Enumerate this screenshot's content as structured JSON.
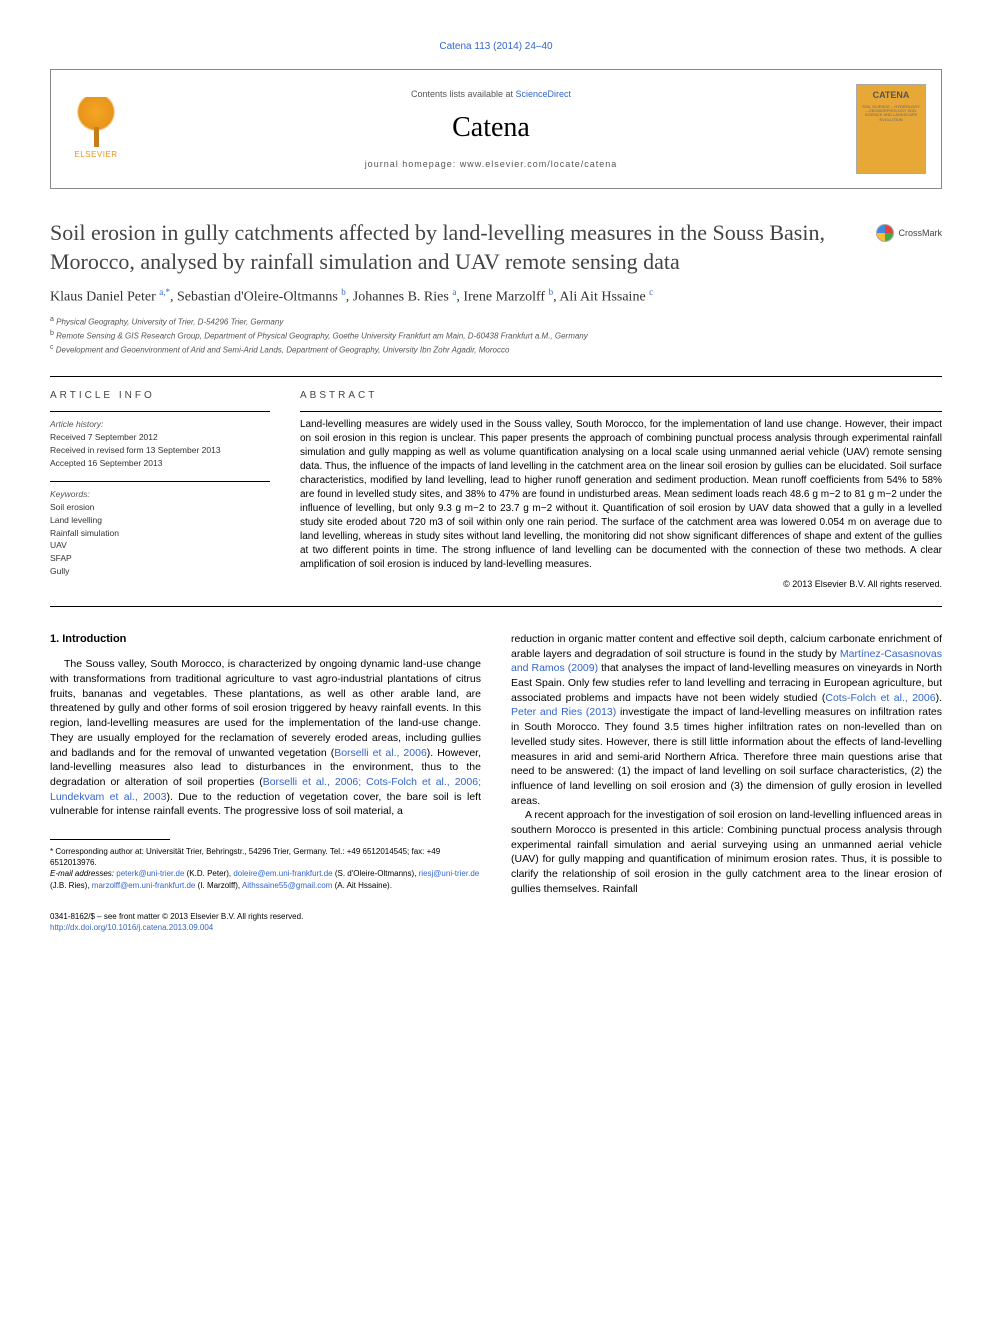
{
  "journal_ref": "Catena 113 (2014) 24–40",
  "header": {
    "contents_prefix": "Contents lists available at ",
    "sciencedirect": "ScienceDirect",
    "journal_name": "Catena",
    "homepage_prefix": "journal homepage: ",
    "homepage": "www.elsevier.com/locate/catena",
    "elsevier": "ELSEVIER",
    "cover_title": "CATENA",
    "cover_sub": "SOIL SCIENCE – HYDROLOGY – GEOMORPHOLOGY\nSOIL SCIENCE AND LANDSCAPE EVOLUTION"
  },
  "crossmark": "CrossMark",
  "title": "Soil erosion in gully catchments affected by land-levelling measures in the Souss Basin, Morocco, analysed by rainfall simulation and UAV remote sensing data",
  "authors_html": "Klaus Daniel Peter <sup>a,*</sup>, Sebastian d'Oleire-Oltmanns <sup>b</sup>, Johannes B. Ries <sup>a</sup>, Irene Marzolff <sup>b</sup>, Ali Ait Hssaine <sup>c</sup>",
  "affiliations": [
    {
      "sup": "a",
      "text": "Physical Geography, University of Trier, D-54296 Trier, Germany"
    },
    {
      "sup": "b",
      "text": "Remote Sensing & GIS Research Group, Department of Physical Geography, Goethe University Frankfurt am Main, D-60438 Frankfurt a.M., Germany"
    },
    {
      "sup": "c",
      "text": "Development and Geoenvironment of Arid and Semi-Arid Lands, Department of Geography, University Ibn Zohr Agadir, Morocco"
    }
  ],
  "article_info": {
    "heading": "ARTICLE INFO",
    "history_label": "Article history:",
    "received": "Received 7 September 2012",
    "revised": "Received in revised form 13 September 2013",
    "accepted": "Accepted 16 September 2013",
    "keywords_label": "Keywords:",
    "keywords": [
      "Soil erosion",
      "Land levelling",
      "Rainfall simulation",
      "UAV",
      "SFAP",
      "Gully"
    ]
  },
  "abstract": {
    "heading": "ABSTRACT",
    "text": "Land-levelling measures are widely used in the Souss valley, South Morocco, for the implementation of land use change. However, their impact on soil erosion in this region is unclear. This paper presents the approach of combining punctual process analysis through experimental rainfall simulation and gully mapping as well as volume quantification analysing on a local scale using unmanned aerial vehicle (UAV) remote sensing data. Thus, the influence of the impacts of land levelling in the catchment area on the linear soil erosion by gullies can be elucidated. Soil surface characteristics, modified by land levelling, lead to higher runoff generation and sediment production. Mean runoff coefficients from 54% to 58% are found in levelled study sites, and 38% to 47% are found in undisturbed areas. Mean sediment loads reach 48.6 g m−2 to 81 g m−2 under the influence of levelling, but only 9.3 g m−2 to 23.7 g m−2 without it. Quantification of soil erosion by UAV data showed that a gully in a levelled study site eroded about 720 m3 of soil within only one rain period. The surface of the catchment area was lowered 0.054 m on average due to land levelling, whereas in study sites without land levelling, the monitoring did not show significant differences of shape and extent of the gullies at two different points in time. The strong influence of land levelling can be documented with the connection of these two methods. A clear amplification of soil erosion is induced by land-levelling measures.",
    "copyright": "© 2013 Elsevier B.V. All rights reserved."
  },
  "body": {
    "heading": "1. Introduction",
    "col1_p1": "The Souss valley, South Morocco, is characterized by ongoing dynamic land-use change with transformations from traditional agriculture to vast agro-industrial plantations of citrus fruits, bananas and vegetables. These plantations, as well as other arable land, are threatened by gully and other forms of soil erosion triggered by heavy rainfall events. In this region, land-levelling measures are used for the implementation of the land-use change. They are usually employed for the reclamation of severely eroded areas, including gullies and badlands and for the removal of unwanted vegetation (",
    "cite1": "Borselli et al., 2006",
    "col1_p1b": "). However, land-levelling measures also lead to disturbances in the environment, thus to the degradation or alteration of soil properties (",
    "cite2": "Borselli et al., 2006; Cots-Folch et al., 2006; Lundekvam et al., 2003",
    "col1_p1c": "). Due to the reduction of vegetation cover, the bare soil is left vulnerable for intense rainfall events. The progressive loss of soil material, a",
    "col2_p1a": "reduction in organic matter content and effective soil depth, calcium carbonate enrichment of arable layers and degradation of soil structure is found in the study by ",
    "cite3": "Martínez-Casasnovas and Ramos (2009)",
    "col2_p1b": " that analyses the impact of land-levelling measures on vineyards in North East Spain. Only few studies refer to land levelling and terracing in European agriculture, but associated problems and impacts have not been widely studied (",
    "cite4": "Cots-Folch et al., 2006",
    "col2_p1c": "). ",
    "cite5": "Peter and Ries (2013)",
    "col2_p1d": " investigate the impact of land-levelling measures on infiltration rates in South Morocco. They found 3.5 times higher infiltration rates on non-levelled than on levelled study sites. However, there is still little information about the effects of land-levelling measures in arid and semi-arid Northern Africa. Therefore three main questions arise that need to be answered: (1) the impact of land levelling on soil surface characteristics, (2) the influence of land levelling on soil erosion and (3) the dimension of gully erosion in levelled areas.",
    "col2_p2": "A recent approach for the investigation of soil erosion on land-levelling influenced areas in southern Morocco is presented in this article: Combining punctual process analysis through experimental rainfall simulation and aerial surveying using an unmanned aerial vehicle (UAV) for gully mapping and quantification of minimum erosion rates. Thus, it is possible to clarify the relationship of soil erosion in the gully catchment area to the linear erosion of gullies themselves. Rainfall"
  },
  "footnotes": {
    "corr_label": "* Corresponding author at: Universität Trier, Behringstr., 54296 Trier, Germany. Tel.: +49 6512014545; fax: +49 6512013976.",
    "email_label": "E-mail addresses: ",
    "emails": [
      {
        "email": "peterk@uni-trier.de",
        "name": "(K.D. Peter)"
      },
      {
        "email": "doleire@em.uni-frankfurt.de",
        "name": "(S. d'Oleire-Oltmanns)"
      },
      {
        "email": "riesj@uni-trier.de",
        "name": "(J.B. Ries)"
      },
      {
        "email": "marzolff@em.uni-frankfurt.de",
        "name": "(I. Marzolff)"
      },
      {
        "email": "Aithssaine55@gmail.com",
        "name": "(A. Ait Hssaine)."
      }
    ]
  },
  "bottom": {
    "issn": "0341-8162/$ – see front matter © 2013 Elsevier B.V. All rights reserved.",
    "doi": "http://dx.doi.org/10.1016/j.catena.2013.09.004"
  }
}
